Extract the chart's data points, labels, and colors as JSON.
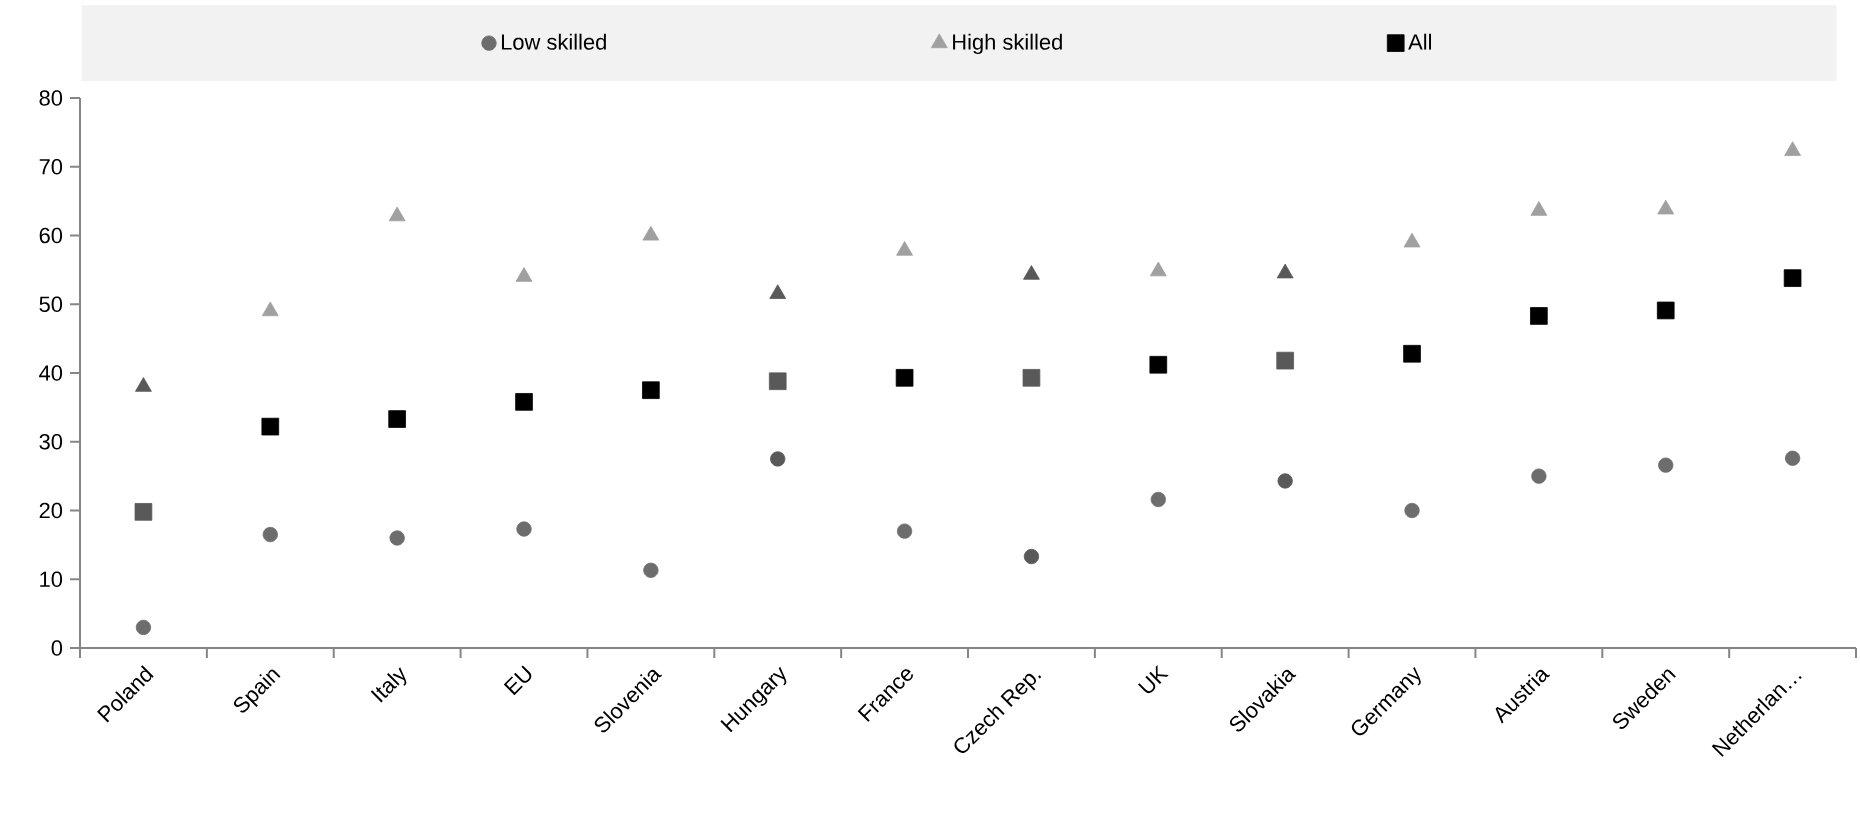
{
  "chart_data": {
    "type": "scatter",
    "categories": [
      "Poland",
      "Spain",
      "Italy",
      "EU",
      "Slovenia",
      "Hungary",
      "France",
      "Czech Rep.",
      "UK",
      "Slovakia",
      "Germany",
      "Austria",
      "Sweden",
      "Netherlan…"
    ],
    "series": [
      {
        "name": "Low skilled",
        "marker": "circle",
        "color": "#6d6d6d",
        "colors": [
          "#6d6d6d",
          "#6d6d6d",
          "#6d6d6d",
          "#6d6d6d",
          "#6d6d6d",
          "#595959",
          "#6d6d6d",
          "#595959",
          "#6d6d6d",
          "#595959",
          "#6d6d6d",
          "#6d6d6d",
          "#6d6d6d",
          "#6d6d6d"
        ],
        "values": [
          3,
          16.5,
          16,
          17.3,
          11.3,
          27.5,
          17,
          13.3,
          21.6,
          24.3,
          20,
          25,
          26.6,
          27.6
        ]
      },
      {
        "name": "High skilled",
        "marker": "triangle",
        "color": "#a0a0a0",
        "colors": [
          "#595959",
          "#a0a0a0",
          "#a0a0a0",
          "#a0a0a0",
          "#a0a0a0",
          "#595959",
          "#a0a0a0",
          "#595959",
          "#a0a0a0",
          "#595959",
          "#a0a0a0",
          "#a0a0a0",
          "#a0a0a0",
          "#a0a0a0"
        ],
        "values": [
          38,
          49,
          62.8,
          54,
          60,
          51.5,
          57.8,
          54.3,
          54.8,
          54.5,
          59,
          63.6,
          63.8,
          72.3
        ]
      },
      {
        "name": "All",
        "marker": "square",
        "color": "#000000",
        "colors": [
          "#595959",
          "#000000",
          "#000000",
          "#000000",
          "#000000",
          "#595959",
          "#000000",
          "#595959",
          "#000000",
          "#595959",
          "#000000",
          "#000000",
          "#000000",
          "#000000"
        ],
        "values": [
          19.8,
          32.2,
          33.3,
          35.8,
          37.5,
          38.8,
          39.3,
          39.3,
          41.2,
          41.8,
          42.8,
          48.3,
          49.1,
          53.8
        ]
      }
    ],
    "ylim": [
      0,
      80
    ],
    "yticks": [
      0,
      10,
      20,
      30,
      40,
      50,
      60,
      70,
      80
    ],
    "legend": "top",
    "grid": false
  }
}
